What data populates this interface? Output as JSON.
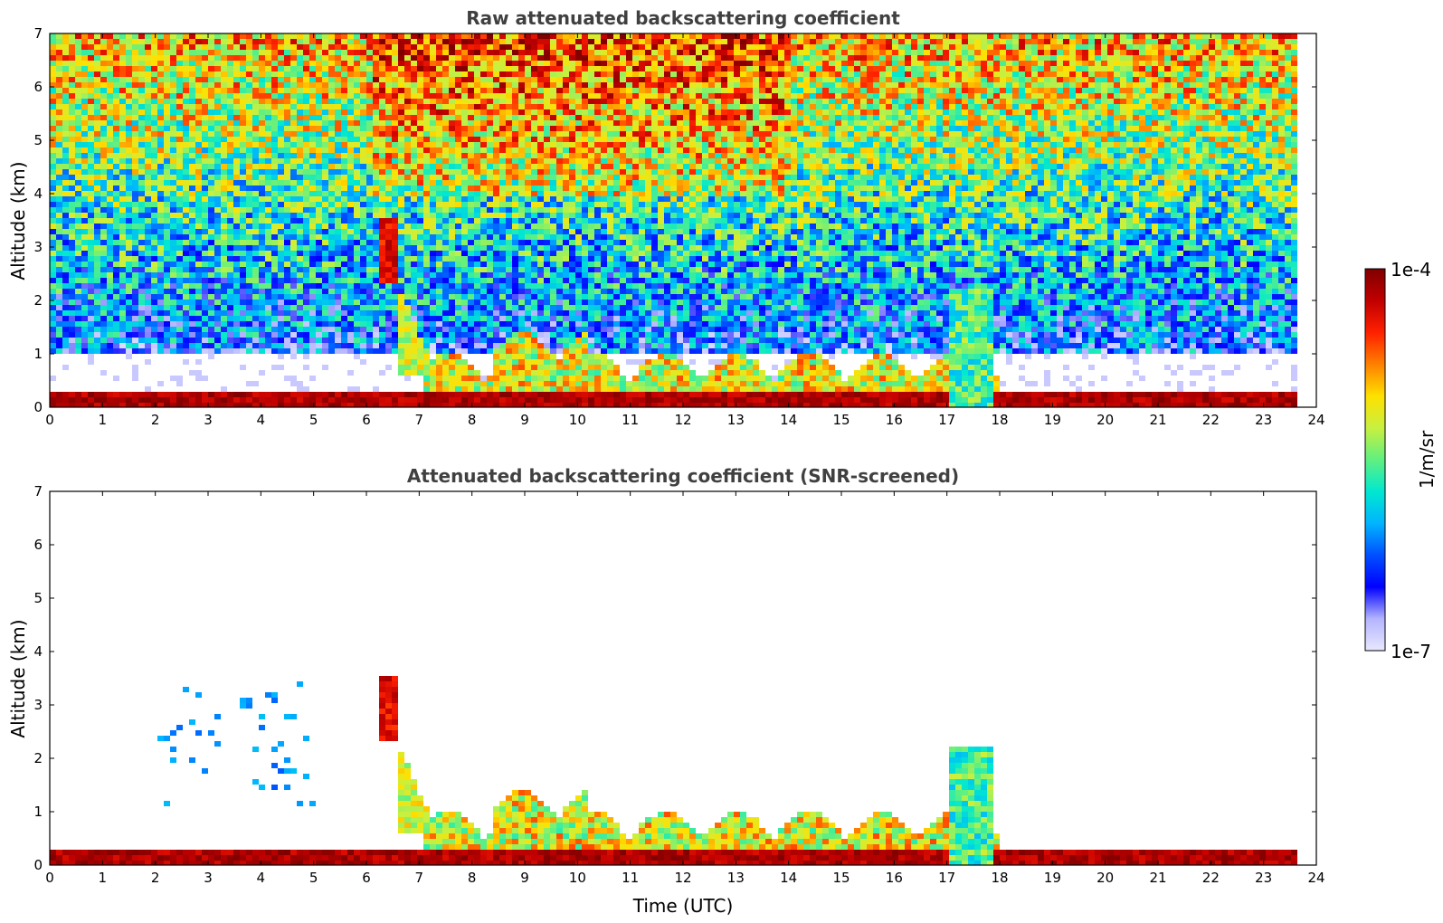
{
  "chart_data": [
    {
      "type": "heatmap",
      "title": "Raw attenuated backscattering coefficient",
      "xlabel": "",
      "ylabel": "Altitude (km)",
      "xlim": [
        0,
        24
      ],
      "ylim": [
        0,
        7
      ],
      "xticks": [
        "0",
        "1",
        "2",
        "3",
        "4",
        "5",
        "6",
        "7",
        "8",
        "9",
        "10",
        "11",
        "12",
        "13",
        "14",
        "15",
        "16",
        "17",
        "18",
        "19",
        "20",
        "21",
        "22",
        "23",
        "24"
      ],
      "yticks": [
        "0",
        "1",
        "2",
        "3",
        "4",
        "5",
        "6",
        "7"
      ],
      "data_end_hour": 23.6,
      "features": [
        {
          "feature": "surface layer",
          "x": [
            0,
            23.6
          ],
          "y": [
            0.1,
            0.3
          ],
          "value": "~1e-4"
        },
        {
          "feature": "boundary layer aerosol",
          "x": [
            7.0,
            18.0
          ],
          "y": [
            0,
            1.2
          ],
          "value": "1e-5 to 1e-4"
        },
        {
          "feature": "elevated plume",
          "x": [
            6.2,
            6.5
          ],
          "y": [
            2.5,
            3.6
          ],
          "value": "~1e-4"
        },
        {
          "feature": "column at 17.5h",
          "x": [
            17.0,
            17.8
          ],
          "y": [
            0,
            2.3
          ],
          "value": "~1e-5"
        },
        {
          "feature": "background noise",
          "x": [
            0,
            23.6
          ],
          "y": [
            1,
            7
          ],
          "value": "1e-7 to 5e-5, increasing with altitude"
        }
      ]
    },
    {
      "type": "heatmap",
      "title": "Attenuated backscattering coefficient (SNR-screened)",
      "xlabel": "Time (UTC)",
      "ylabel": "Altitude (km)",
      "xlim": [
        0,
        24
      ],
      "ylim": [
        0,
        7
      ],
      "xticks": [
        "0",
        "1",
        "2",
        "3",
        "4",
        "5",
        "6",
        "7",
        "8",
        "9",
        "10",
        "11",
        "12",
        "13",
        "14",
        "15",
        "16",
        "17",
        "18",
        "19",
        "20",
        "21",
        "22",
        "23",
        "24"
      ],
      "yticks": [
        "0",
        "1",
        "2",
        "3",
        "4",
        "5",
        "6",
        "7"
      ],
      "data_end_hour": 23.6,
      "features": [
        {
          "feature": "surface layer",
          "x": [
            0,
            23.6
          ],
          "y": [
            0.05,
            0.3
          ],
          "value": "~1e-4 (saturated)"
        },
        {
          "feature": "boundary layer aerosol",
          "x": [
            7.0,
            18.0
          ],
          "y": [
            0,
            1.5
          ],
          "value": "1e-5 to 1e-4"
        },
        {
          "feature": "elevated plume",
          "x": [
            6.2,
            7.2
          ],
          "y": [
            0.5,
            3.6
          ],
          "value": "1e-5 to 1e-4"
        },
        {
          "feature": "column at 17.5h",
          "x": [
            17.0,
            17.8
          ],
          "y": [
            0,
            2.4
          ],
          "value": "~1e-5"
        },
        {
          "feature": "scattered returns",
          "x": [
            2.0,
            5.0
          ],
          "y": [
            1.2,
            3.5
          ],
          "value": "~1e-6"
        }
      ]
    }
  ],
  "colorbar": {
    "label": "1/m/sr",
    "max_label": "1e-4",
    "min_label": "1e-7",
    "colors": [
      "#e8e8ff",
      "#b4b4ff",
      "#0000ff",
      "#0050ff",
      "#00b4ff",
      "#00e8d0",
      "#60f080",
      "#c8f040",
      "#ffe000",
      "#ff8000",
      "#ff2000",
      "#c00000",
      "#800000"
    ]
  }
}
